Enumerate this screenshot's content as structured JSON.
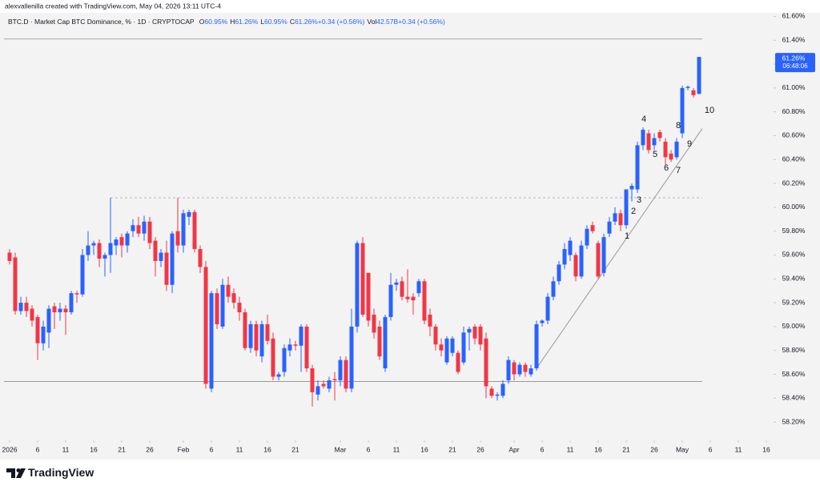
{
  "credit": "alexvallenilla created with TradingView.com, May 04, 2026 13:11 UTC-4",
  "footer": {
    "brand": "TradingView"
  },
  "chart_data": {
    "type": "candlestick",
    "legend": {
      "symbol": "BTC.D · Market Cap BTC Dominance, % · 1D · CRYPTOCAP",
      "items": [
        {
          "label": "O",
          "value": "60.95%"
        },
        {
          "label": "H",
          "value": "61.26%"
        },
        {
          "label": "L",
          "value": "60.95%"
        },
        {
          "label": "C",
          "value": "61.26%"
        },
        {
          "label": "",
          "value": "+0.34 (+0.56%)"
        },
        {
          "label": "Vol",
          "value": "42.57B"
        },
        {
          "label": "",
          "value": "+0.34 (+0.56%)"
        }
      ]
    },
    "last_price_label": "61.26%",
    "countdown": "06:48:06",
    "up_color": "#2962ff",
    "down_color": "#f23645",
    "xlim": [
      "2025-12-31",
      "2026-05-17"
    ],
    "ylim": [
      58.08,
      61.63
    ],
    "xticks": [
      {
        "value": "2026-01-01",
        "label": "2026"
      },
      {
        "value": "2026-01-06",
        "label": "6"
      },
      {
        "value": "2026-01-11",
        "label": "11"
      },
      {
        "value": "2026-01-16",
        "label": "16"
      },
      {
        "value": "2026-01-21",
        "label": "21"
      },
      {
        "value": "2026-01-26",
        "label": "26"
      },
      {
        "value": "2026-02-01",
        "label": "Feb"
      },
      {
        "value": "2026-02-06",
        "label": "6"
      },
      {
        "value": "2026-02-11",
        "label": "11"
      },
      {
        "value": "2026-02-16",
        "label": "16"
      },
      {
        "value": "2026-02-21",
        "label": "21"
      },
      {
        "value": "2026-03-01",
        "label": "Mar"
      },
      {
        "value": "2026-03-06",
        "label": "6"
      },
      {
        "value": "2026-03-11",
        "label": "11"
      },
      {
        "value": "2026-03-16",
        "label": "16"
      },
      {
        "value": "2026-03-21",
        "label": "21"
      },
      {
        "value": "2026-03-26",
        "label": "26"
      },
      {
        "value": "2026-04-01",
        "label": "Apr"
      },
      {
        "value": "2026-04-06",
        "label": "6"
      },
      {
        "value": "2026-04-11",
        "label": "11"
      },
      {
        "value": "2026-04-16",
        "label": "16"
      },
      {
        "value": "2026-04-21",
        "label": "21"
      },
      {
        "value": "2026-04-26",
        "label": "26"
      },
      {
        "value": "2026-05-01",
        "label": "May"
      },
      {
        "value": "2026-05-06",
        "label": "6"
      },
      {
        "value": "2026-05-11",
        "label": "11"
      },
      {
        "value": "2026-05-16",
        "label": "16"
      }
    ],
    "yticks": [
      {
        "value": 58.2,
        "label": "58.20%"
      },
      {
        "value": 58.4,
        "label": "58.40%"
      },
      {
        "value": 58.6,
        "label": "58.60%"
      },
      {
        "value": 58.8,
        "label": "58.80%"
      },
      {
        "value": 59.0,
        "label": "59.00%"
      },
      {
        "value": 59.2,
        "label": "59.20%"
      },
      {
        "value": 59.4,
        "label": "59.40%"
      },
      {
        "value": 59.6,
        "label": "59.60%"
      },
      {
        "value": 59.8,
        "label": "59.80%"
      },
      {
        "value": 60.0,
        "label": "60.00%"
      },
      {
        "value": 60.2,
        "label": "60.20%"
      },
      {
        "value": 60.4,
        "label": "60.40%"
      },
      {
        "value": 60.6,
        "label": "60.60%"
      },
      {
        "value": 60.8,
        "label": "60.80%"
      },
      {
        "value": 61.0,
        "label": "61.00%"
      },
      {
        "value": 61.2,
        "label": "61.20%"
      },
      {
        "value": 61.4,
        "label": "61.40%"
      },
      {
        "value": 61.6,
        "label": "61.60%"
      }
    ],
    "levels": [
      {
        "value": 61.41,
        "style": "solid",
        "start": "2025-12-31",
        "end": "2026-05-04"
      },
      {
        "value": 60.08,
        "style": "dashed",
        "start": "2026-01-19",
        "end": "2026-05-04"
      },
      {
        "value": 58.54,
        "style": "solid",
        "start": "2025-12-31",
        "end": "2026-05-04"
      }
    ],
    "trendline": {
      "x": [
        "2026-04-05",
        "2026-05-04"
      ],
      "y": [
        58.65,
        60.66
      ]
    },
    "annotations": [
      "1",
      "2",
      "3",
      "4",
      "5",
      "6",
      "7",
      "8",
      "9",
      "10"
    ],
    "x": [
      "2026-01-01",
      "2026-01-02",
      "2026-01-03",
      "2026-01-04",
      "2026-01-05",
      "2026-01-06",
      "2026-01-07",
      "2026-01-08",
      "2026-01-09",
      "2026-01-10",
      "2026-01-11",
      "2026-01-12",
      "2026-01-13",
      "2026-01-14",
      "2026-01-15",
      "2026-01-16",
      "2026-01-17",
      "2026-01-18",
      "2026-01-19",
      "2026-01-20",
      "2026-01-21",
      "2026-01-22",
      "2026-01-23",
      "2026-01-24",
      "2026-01-25",
      "2026-01-26",
      "2026-01-27",
      "2026-01-28",
      "2026-01-29",
      "2026-01-30",
      "2026-01-31",
      "2026-02-01",
      "2026-02-02",
      "2026-02-03",
      "2026-02-04",
      "2026-02-05",
      "2026-02-06",
      "2026-02-07",
      "2026-02-08",
      "2026-02-09",
      "2026-02-10",
      "2026-02-11",
      "2026-02-12",
      "2026-02-13",
      "2026-02-14",
      "2026-02-15",
      "2026-02-16",
      "2026-02-17",
      "2026-02-18",
      "2026-02-19",
      "2026-02-20",
      "2026-02-21",
      "2026-02-22",
      "2026-02-23",
      "2026-02-24",
      "2026-02-25",
      "2026-02-26",
      "2026-02-27",
      "2026-02-28",
      "2026-03-01",
      "2026-03-02",
      "2026-03-03",
      "2026-03-04",
      "2026-03-05",
      "2026-03-06",
      "2026-03-07",
      "2026-03-08",
      "2026-03-09",
      "2026-03-10",
      "2026-03-11",
      "2026-03-12",
      "2026-03-13",
      "2026-03-14",
      "2026-03-15",
      "2026-03-16",
      "2026-03-17",
      "2026-03-18",
      "2026-03-19",
      "2026-03-20",
      "2026-03-21",
      "2026-03-22",
      "2026-03-23",
      "2026-03-24",
      "2026-03-25",
      "2026-03-26",
      "2026-03-27",
      "2026-03-28",
      "2026-03-29",
      "2026-03-30",
      "2026-03-31",
      "2026-04-01",
      "2026-04-02",
      "2026-04-03",
      "2026-04-04",
      "2026-04-05",
      "2026-04-06",
      "2026-04-07",
      "2026-04-08",
      "2026-04-09",
      "2026-04-10",
      "2026-04-11",
      "2026-04-12",
      "2026-04-13",
      "2026-04-14",
      "2026-04-15",
      "2026-04-16",
      "2026-04-17",
      "2026-04-18",
      "2026-04-19",
      "2026-04-20",
      "2026-04-21",
      "2026-04-22",
      "2026-04-23",
      "2026-04-24",
      "2026-04-25",
      "2026-04-26",
      "2026-04-27",
      "2026-04-28",
      "2026-04-29",
      "2026-04-30",
      "2026-05-01",
      "2026-05-02",
      "2026-05-03",
      "2026-05-04"
    ],
    "open": [
      59.62,
      59.58,
      59.13,
      59.2,
      59.15,
      59.08,
      58.86,
      58.95,
      59.17,
      59.12,
      59.15,
      59.12,
      59.28,
      59.27,
      59.6,
      59.68,
      59.7,
      59.57,
      59.6,
      59.68,
      59.75,
      59.68,
      59.8,
      59.85,
      59.78,
      59.88,
      59.72,
      59.55,
      59.62,
      59.35,
      59.8,
      59.68,
      59.92,
      59.96,
      59.65,
      59.5,
      58.48,
      59.28,
      59.0,
      59.35,
      59.28,
      59.2,
      59.12,
      58.82,
      59.02,
      58.75,
      59.02,
      58.9,
      58.58,
      58.62,
      58.8,
      58.85,
      58.84,
      59.0,
      58.65,
      58.43,
      58.52,
      58.48,
      58.56,
      58.55,
      58.72,
      58.48,
      59.0,
      59.7,
      59.45,
      59.1,
      59.0,
      58.65,
      59.08,
      59.35,
      59.38,
      59.25,
      59.25,
      59.28,
      59.38,
      59.1,
      59.0,
      58.85,
      58.7,
      58.78,
      58.78,
      58.7,
      58.95,
      59.0,
      59.0,
      58.9,
      58.48,
      58.42,
      58.42,
      58.55,
      58.7,
      58.6,
      58.68,
      58.6,
      58.65,
      59.03,
      59.05,
      59.25,
      59.38,
      59.52,
      59.6,
      59.6,
      59.42,
      59.68,
      59.85,
      59.7,
      59.45,
      59.78,
      59.88,
      59.95,
      59.85,
      60.15,
      60.15,
      60.52,
      60.62,
      60.52,
      60.63,
      60.55,
      60.45,
      60.42,
      60.62,
      61.0,
      60.98,
      60.95
    ],
    "high": [
      59.65,
      59.62,
      59.25,
      59.25,
      59.18,
      59.1,
      59.05,
      59.18,
      59.2,
      59.2,
      59.18,
      59.3,
      59.3,
      59.65,
      59.8,
      59.72,
      59.73,
      59.62,
      60.08,
      59.75,
      59.78,
      59.8,
      59.9,
      59.92,
      59.93,
      59.92,
      59.75,
      59.65,
      59.72,
      59.8,
      60.08,
      59.98,
      59.98,
      59.98,
      59.68,
      59.55,
      59.3,
      59.32,
      59.4,
      59.42,
      59.32,
      59.25,
      59.15,
      59.05,
      59.05,
      59.05,
      59.1,
      58.95,
      58.62,
      58.85,
      58.9,
      58.88,
      59.02,
      59.02,
      58.68,
      58.55,
      58.55,
      58.58,
      58.62,
      58.75,
      58.75,
      59.15,
      59.72,
      59.75,
      59.45,
      59.15,
      59.05,
      59.1,
      59.45,
      59.4,
      59.42,
      59.48,
      59.28,
      59.4,
      59.4,
      59.15,
      59.02,
      58.9,
      58.92,
      58.92,
      58.8,
      59.0,
      59.0,
      59.02,
      59.02,
      58.95,
      58.5,
      58.45,
      58.55,
      58.75,
      58.72,
      58.7,
      58.7,
      58.68,
      59.05,
      59.06,
      59.28,
      59.42,
      59.55,
      59.7,
      59.75,
      59.62,
      59.72,
      59.85,
      59.88,
      59.72,
      59.78,
      59.92,
      60.0,
      59.98,
      60.15,
      60.2,
      60.55,
      60.67,
      60.65,
      60.62,
      60.65,
      60.58,
      60.48,
      60.58,
      61.02,
      61.02,
      61.0,
      61.26
    ],
    "low": [
      59.52,
      59.1,
      59.1,
      59.08,
      59.0,
      58.72,
      58.8,
      58.82,
      58.98,
      59.05,
      58.93,
      59.1,
      59.2,
      59.25,
      59.55,
      59.6,
      59.5,
      59.42,
      59.45,
      59.6,
      59.58,
      59.62,
      59.75,
      59.75,
      59.72,
      59.65,
      59.42,
      59.5,
      59.3,
      59.28,
      59.62,
      59.62,
      59.85,
      59.62,
      59.45,
      58.48,
      58.45,
      58.98,
      58.98,
      59.2,
      59.15,
      59.05,
      58.8,
      58.78,
      58.75,
      58.7,
      58.85,
      58.55,
      58.55,
      58.58,
      58.75,
      58.8,
      58.62,
      58.62,
      58.33,
      58.38,
      58.48,
      58.45,
      58.38,
      58.5,
      58.45,
      58.45,
      58.95,
      59.08,
      59.0,
      58.9,
      58.72,
      58.62,
      59.05,
      59.3,
      59.22,
      59.2,
      59.1,
      59.25,
      59.02,
      58.92,
      58.8,
      58.75,
      58.68,
      58.75,
      58.6,
      58.68,
      58.8,
      58.85,
      58.8,
      58.4,
      58.4,
      58.38,
      58.4,
      58.52,
      58.55,
      58.58,
      58.58,
      58.58,
      58.63,
      59.0,
      59.02,
      59.22,
      59.35,
      59.48,
      59.55,
      59.38,
      59.4,
      59.65,
      59.78,
      59.4,
      59.42,
      59.75,
      59.85,
      59.8,
      59.82,
      60.05,
      60.12,
      60.48,
      60.45,
      60.48,
      60.55,
      60.35,
      60.38,
      60.4,
      60.58,
      60.98,
      60.92,
      60.95
    ],
    "close": [
      59.55,
      59.13,
      59.2,
      59.13,
      59.05,
      58.86,
      59.0,
      59.15,
      59.12,
      59.15,
      59.12,
      59.28,
      59.27,
      59.6,
      59.68,
      59.7,
      59.57,
      59.6,
      59.7,
      59.73,
      59.68,
      59.78,
      59.85,
      59.78,
      59.88,
      59.7,
      59.55,
      59.62,
      59.35,
      59.78,
      59.68,
      59.95,
      59.96,
      59.65,
      59.5,
      58.52,
      59.28,
      59.02,
      59.35,
      59.25,
      59.2,
      59.12,
      58.82,
      59.02,
      58.8,
      59.02,
      58.88,
      58.58,
      58.6,
      58.82,
      58.85,
      58.84,
      59.0,
      58.65,
      58.45,
      58.5,
      58.5,
      58.55,
      58.55,
      58.72,
      58.48,
      59.0,
      59.7,
      59.1,
      59.05,
      58.95,
      58.75,
      59.08,
      59.35,
      59.37,
      59.25,
      59.23,
      59.22,
      59.38,
      59.05,
      59.0,
      58.85,
      58.8,
      58.9,
      58.9,
      58.62,
      58.95,
      58.98,
      58.9,
      58.85,
      58.5,
      58.42,
      58.43,
      58.52,
      58.72,
      58.6,
      58.68,
      58.62,
      58.65,
      59.02,
      59.05,
      59.25,
      59.38,
      59.52,
      59.65,
      59.72,
      59.42,
      59.68,
      59.82,
      59.8,
      59.42,
      59.75,
      59.88,
      59.95,
      59.85,
      60.15,
      60.18,
      60.52,
      60.65,
      60.48,
      60.58,
      60.58,
      60.42,
      60.4,
      60.55,
      61.0,
      61.01,
      60.94,
      61.26
    ]
  }
}
